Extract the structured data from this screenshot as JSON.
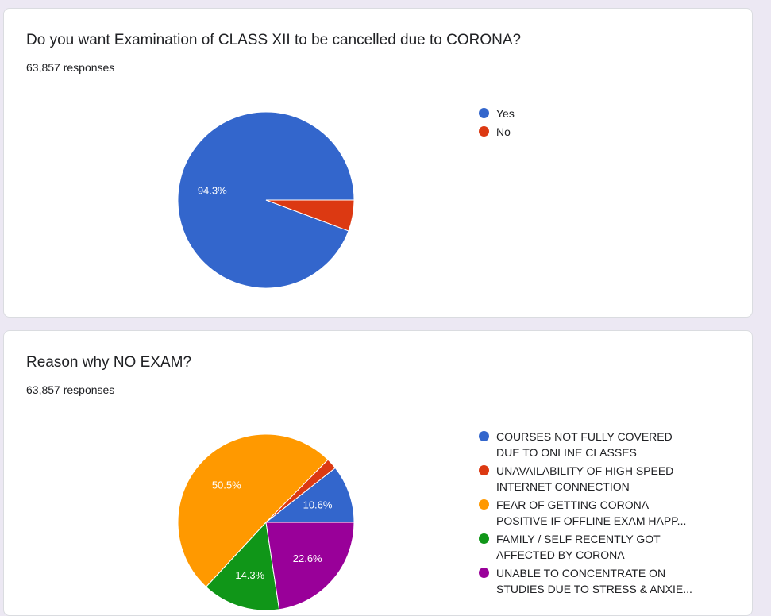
{
  "colors": {
    "page_bg": "#ece8f3",
    "blue": "#3366cc",
    "red": "#dc3912",
    "orange": "#ff9900",
    "green": "#109618",
    "purple": "#990099"
  },
  "cards": [
    {
      "title": "Do you want Examination of CLASS XII to be cancelled due to CORONA?",
      "responses": "63,857 responses"
    },
    {
      "title": "Reason why NO EXAM?",
      "responses": "63,857 responses"
    }
  ],
  "chart_data": [
    {
      "type": "pie",
      "legend_position": "right",
      "slices": [
        {
          "label": "Yes",
          "value": 94.3,
          "color": "#3366cc",
          "data_label": "94.3%"
        },
        {
          "label": "No",
          "value": 5.7,
          "color": "#dc3912",
          "data_label": ""
        }
      ]
    },
    {
      "type": "pie",
      "legend_position": "right",
      "slices": [
        {
          "label_lines": [
            "COURSES NOT FULLY COVERED",
            "DUE TO ONLINE CLASSES"
          ],
          "value": 10.6,
          "color": "#3366cc",
          "data_label": "10.6%"
        },
        {
          "label_lines": [
            "UNAVAILABILITY OF HIGH SPEED",
            "INTERNET CONNECTION"
          ],
          "value": 2.0,
          "color": "#dc3912",
          "data_label": ""
        },
        {
          "label_lines": [
            "FEAR OF GETTING CORONA",
            "POSITIVE IF OFFLINE EXAM HAPP..."
          ],
          "value": 50.5,
          "color": "#ff9900",
          "data_label": "50.5%"
        },
        {
          "label_lines": [
            "FAMILY / SELF RECENTLY GOT",
            "AFFECTED BY CORONA"
          ],
          "value": 14.3,
          "color": "#109618",
          "data_label": "14.3%"
        },
        {
          "label_lines": [
            "UNABLE TO CONCENTRATE ON",
            "STUDIES DUE TO STRESS & ANXIE..."
          ],
          "value": 22.6,
          "color": "#990099",
          "data_label": "22.6%"
        }
      ]
    }
  ]
}
